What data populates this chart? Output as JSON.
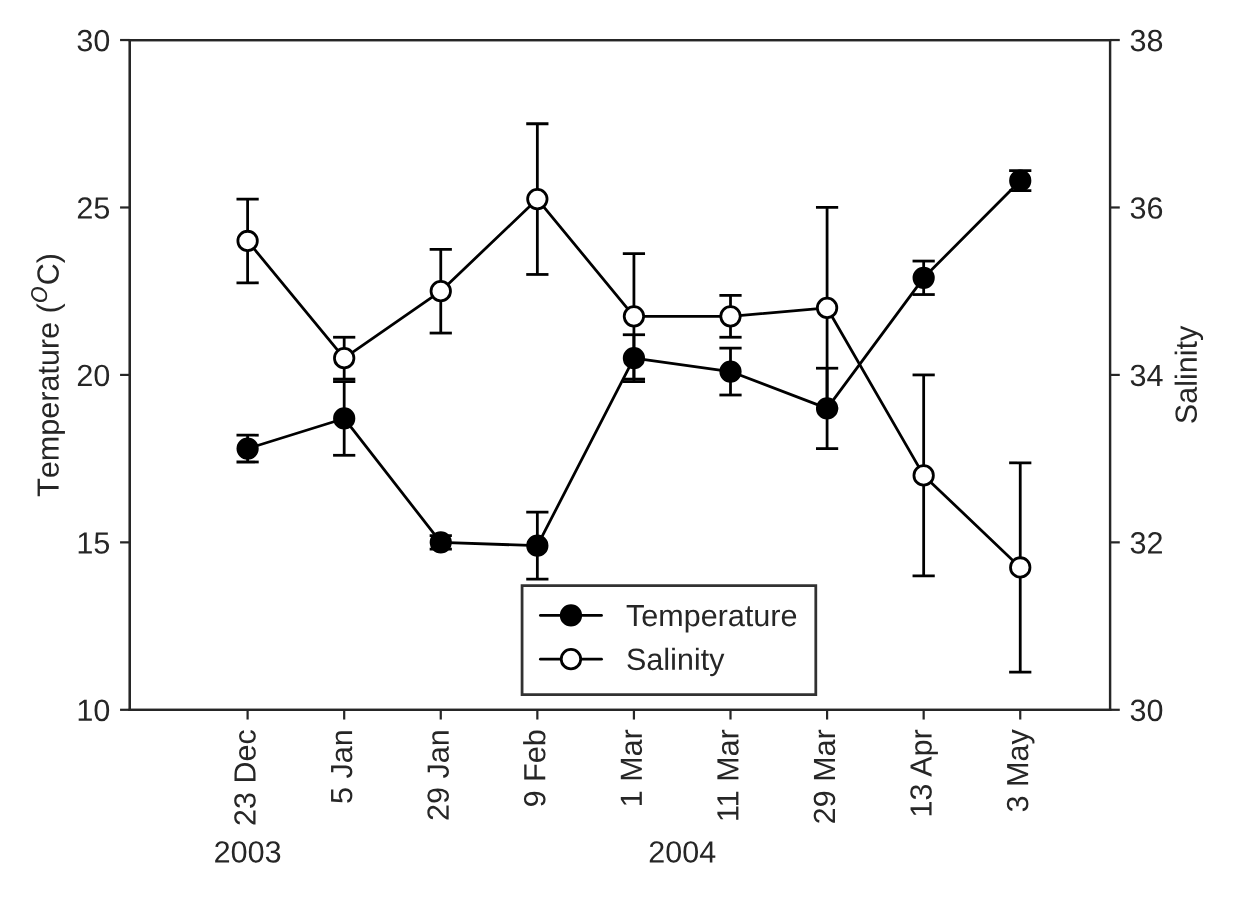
{
  "chart_data": {
    "type": "line",
    "categories": [
      "23 Dec",
      "5 Jan",
      "29 Jan",
      "9 Feb",
      "1 Mar",
      "11 Mar",
      "29 Mar",
      "13 Apr",
      "3 May"
    ],
    "ylabel": "Temperature ($^{O}$C)",
    "y2label": "Salinity",
    "ylim": [
      10,
      30
    ],
    "yticks": [
      10,
      15,
      20,
      25,
      30
    ],
    "y2lim": [
      30,
      38
    ],
    "y2ticks": [
      30,
      32,
      34,
      36,
      38
    ],
    "series": [
      {
        "name": "Temperature",
        "color": "#000000",
        "marker": "circle",
        "values": [
          17.8,
          18.7,
          15.0,
          14.9,
          20.5,
          20.1,
          19.0,
          22.9,
          25.8
        ],
        "errors": [
          0.4,
          1.1,
          0.2,
          1.0,
          0.7,
          0.7,
          1.2,
          0.5,
          0.3
        ]
      },
      {
        "name": "Salinity",
        "color": "#ffffff",
        "marker": "circle",
        "axis": "y2",
        "values": [
          35.6,
          34.2,
          35.0,
          36.1,
          34.7,
          34.7,
          34.8,
          32.8,
          31.7
        ],
        "errors": [
          0.5,
          0.25,
          0.5,
          0.9,
          0.75,
          0.25,
          1.2,
          1.2,
          1.25
        ]
      }
    ],
    "annotations": [
      "2003",
      "2004"
    ],
    "legend": "bottom",
    "grid": false
  }
}
